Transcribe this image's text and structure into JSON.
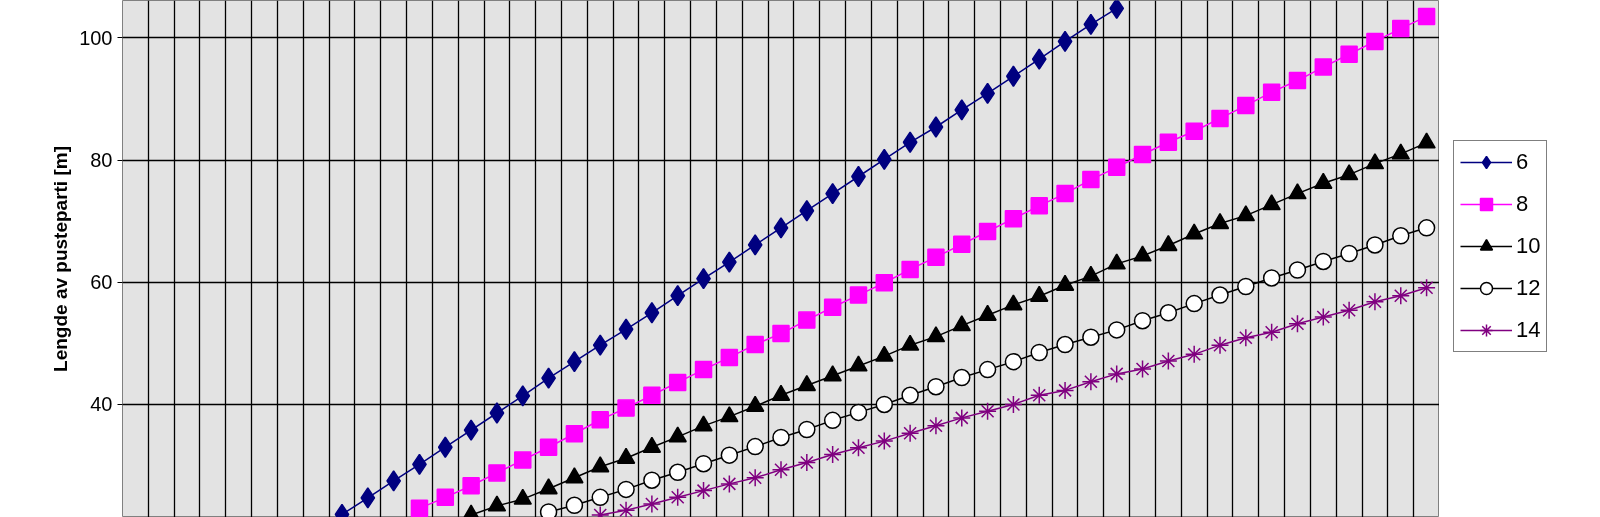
{
  "chart_data": {
    "type": "line",
    "ylabel": "Lengde av pusteparti [m]",
    "categories": [
      null,
      null,
      null,
      null,
      null,
      null,
      null,
      null,
      null,
      null,
      null,
      null,
      null,
      null,
      null,
      null,
      null,
      null,
      null,
      null,
      null,
      null,
      null,
      null,
      null,
      null,
      null,
      null,
      null,
      null,
      null,
      null,
      null,
      null,
      null,
      null,
      null,
      null,
      null,
      null,
      null,
      null,
      null,
      null,
      null,
      null,
      null,
      null,
      null,
      null,
      null
    ],
    "ylim": [
      21.5,
      106.1
    ],
    "yticks": [
      40,
      60,
      80,
      100
    ],
    "grid": true,
    "legend": "right",
    "tick_labels": "y",
    "series": [
      {
        "name": "6",
        "color": "#000080",
        "marker": "diamond",
        "values": [
          null,
          null,
          null,
          null,
          null,
          null,
          null,
          null,
          22.0,
          24.7,
          27.5,
          30.2,
          33.0,
          35.8,
          38.6,
          41.4,
          44.3,
          47.0,
          49.7,
          52.3,
          55.0,
          57.8,
          60.6,
          63.3,
          66.1,
          68.9,
          71.7,
          74.5,
          77.3,
          80.1,
          82.9,
          85.4,
          88.2,
          90.9,
          93.7,
          96.5,
          99.4,
          102.2,
          104.8,
          null,
          null,
          null,
          null,
          null,
          null,
          null,
          null,
          null,
          null,
          null,
          null
        ]
      },
      {
        "name": "8",
        "color": "#ff00ff",
        "marker": "square",
        "values": [
          null,
          null,
          null,
          null,
          null,
          null,
          null,
          null,
          null,
          null,
          null,
          23.0,
          24.8,
          26.7,
          28.8,
          30.9,
          33.0,
          35.2,
          37.5,
          39.4,
          41.5,
          43.6,
          45.7,
          47.7,
          49.8,
          51.6,
          53.8,
          55.9,
          57.9,
          59.9,
          62.1,
          64.1,
          66.2,
          68.3,
          70.4,
          72.5,
          74.5,
          76.8,
          78.8,
          80.9,
          82.9,
          84.7,
          86.8,
          88.9,
          91.1,
          93.0,
          95.2,
          97.3,
          99.4,
          101.5,
          103.5
        ]
      },
      {
        "name": "10",
        "color": "#000000",
        "marker": "triangle",
        "values": [
          null,
          null,
          null,
          null,
          null,
          null,
          null,
          null,
          null,
          null,
          null,
          null,
          null,
          21.9,
          23.4,
          24.5,
          26.2,
          28.0,
          29.8,
          31.2,
          33.0,
          34.7,
          36.5,
          38.0,
          39.7,
          41.5,
          43.1,
          44.7,
          46.3,
          47.9,
          49.7,
          51.1,
          52.9,
          54.6,
          56.3,
          57.7,
          59.5,
          61.0,
          63.0,
          64.3,
          66.0,
          67.9,
          69.6,
          70.9,
          72.7,
          74.5,
          76.2,
          77.6,
          79.4,
          81.0,
          82.8
        ]
      },
      {
        "name": "12",
        "color": "#000000",
        "marker": "circle",
        "values": [
          null,
          null,
          null,
          null,
          null,
          null,
          null,
          null,
          null,
          null,
          null,
          null,
          null,
          null,
          null,
          null,
          22.4,
          23.5,
          24.8,
          26.1,
          27.6,
          28.9,
          30.3,
          31.7,
          33.1,
          34.6,
          35.9,
          37.4,
          38.7,
          40.0,
          41.5,
          42.9,
          44.4,
          45.7,
          47.0,
          48.5,
          49.8,
          51.0,
          52.2,
          53.7,
          55.0,
          56.5,
          57.9,
          59.3,
          60.7,
          62.0,
          63.4,
          64.7,
          66.1,
          67.6,
          68.9
        ]
      },
      {
        "name": "14",
        "color": "#800080",
        "marker": "cross",
        "values": [
          null,
          null,
          null,
          null,
          null,
          null,
          null,
          null,
          null,
          null,
          null,
          null,
          null,
          null,
          null,
          null,
          null,
          null,
          21.9,
          22.7,
          23.7,
          24.8,
          25.9,
          27.0,
          28.0,
          29.3,
          30.5,
          31.8,
          32.9,
          34.0,
          35.3,
          36.5,
          37.8,
          38.9,
          40.0,
          41.5,
          42.3,
          43.7,
          45.0,
          45.8,
          47.1,
          48.2,
          49.7,
          50.9,
          51.8,
          53.2,
          54.3,
          55.4,
          56.8,
          57.8,
          59.1
        ]
      }
    ]
  }
}
